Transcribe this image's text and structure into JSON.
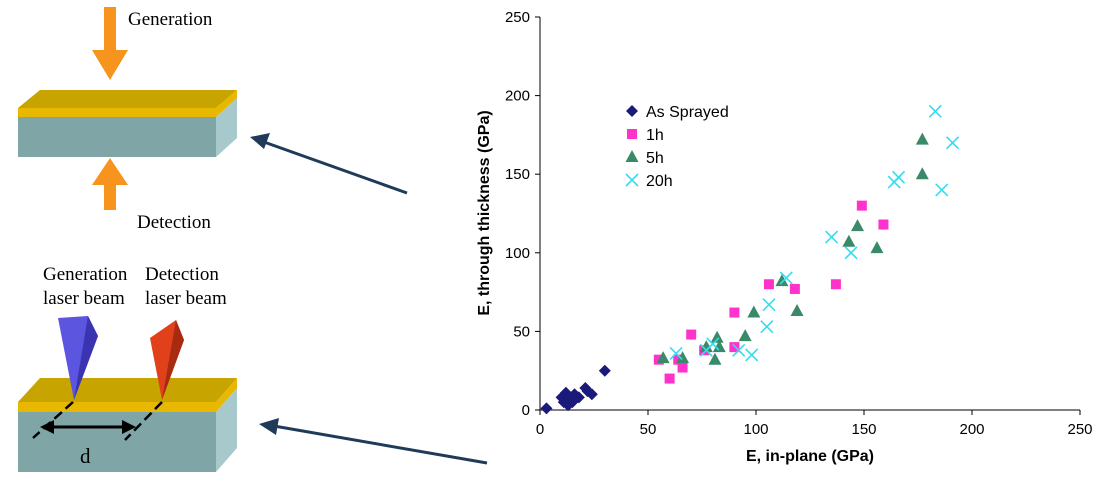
{
  "diagram": {
    "generation_label": "Generation",
    "detection_label": "Detection",
    "gen_beam_line1": "Generation",
    "gen_beam_line2": "laser beam",
    "det_beam_line1": "Detection",
    "det_beam_line2": "laser beam",
    "distance_label": "d",
    "colors": {
      "arrow_orange": "#f7941d",
      "coating_top": "#c8a400",
      "coating_front": "#e8b800",
      "block_front": "#7fa5a7",
      "block_side": "#a8c9cb",
      "gen_beam": "#5b55e0",
      "det_beam": "#e0401a",
      "pointer_arrow": "#203a5a"
    }
  },
  "chart_data": {
    "type": "scatter",
    "xlabel": "E, in-plane (GPa)",
    "ylabel": "E, through thickness (GPa)",
    "xlim": [
      0,
      250
    ],
    "ylim": [
      0,
      250
    ],
    "xticks": [
      0,
      50,
      100,
      150,
      200,
      250
    ],
    "yticks": [
      0,
      50,
      100,
      150,
      200,
      250
    ],
    "grid": false,
    "legend_position": "top-left",
    "series": [
      {
        "name": "As Sprayed",
        "marker": "diamond",
        "color": "#1a1a7a",
        "points": [
          [
            3,
            1
          ],
          [
            10,
            8
          ],
          [
            11,
            5
          ],
          [
            12,
            11
          ],
          [
            13,
            3
          ],
          [
            14,
            7
          ],
          [
            15,
            5
          ],
          [
            16,
            10
          ],
          [
            18,
            8
          ],
          [
            21,
            14
          ],
          [
            22,
            12
          ],
          [
            24,
            10
          ],
          [
            30,
            25
          ]
        ]
      },
      {
        "name": "1h",
        "marker": "square",
        "color": "#ff33cc",
        "points": [
          [
            55,
            32
          ],
          [
            60,
            20
          ],
          [
            64,
            32
          ],
          [
            66,
            27
          ],
          [
            70,
            48
          ],
          [
            76,
            38
          ],
          [
            90,
            62
          ],
          [
            90,
            40
          ],
          [
            106,
            80
          ],
          [
            118,
            77
          ],
          [
            137,
            80
          ],
          [
            149,
            130
          ],
          [
            159,
            118
          ]
        ]
      },
      {
        "name": "5h",
        "marker": "triangle",
        "color": "#3a8a6a",
        "points": [
          [
            57,
            33
          ],
          [
            66,
            33
          ],
          [
            77,
            40
          ],
          [
            81,
            32
          ],
          [
            82,
            46
          ],
          [
            83,
            40
          ],
          [
            95,
            47
          ],
          [
            99,
            62
          ],
          [
            112,
            82
          ],
          [
            119,
            63
          ],
          [
            143,
            107
          ],
          [
            147,
            117
          ],
          [
            156,
            103
          ],
          [
            177,
            172
          ],
          [
            177,
            150
          ]
        ]
      },
      {
        "name": "20h",
        "marker": "x",
        "color": "#33ddee",
        "points": [
          [
            63,
            36
          ],
          [
            77,
            38
          ],
          [
            80,
            42
          ],
          [
            92,
            38
          ],
          [
            98,
            35
          ],
          [
            105,
            53
          ],
          [
            106,
            67
          ],
          [
            114,
            84
          ],
          [
            135,
            110
          ],
          [
            144,
            100
          ],
          [
            164,
            145
          ],
          [
            166,
            148
          ],
          [
            183,
            190
          ],
          [
            186,
            140
          ],
          [
            191,
            170
          ]
        ]
      }
    ]
  }
}
